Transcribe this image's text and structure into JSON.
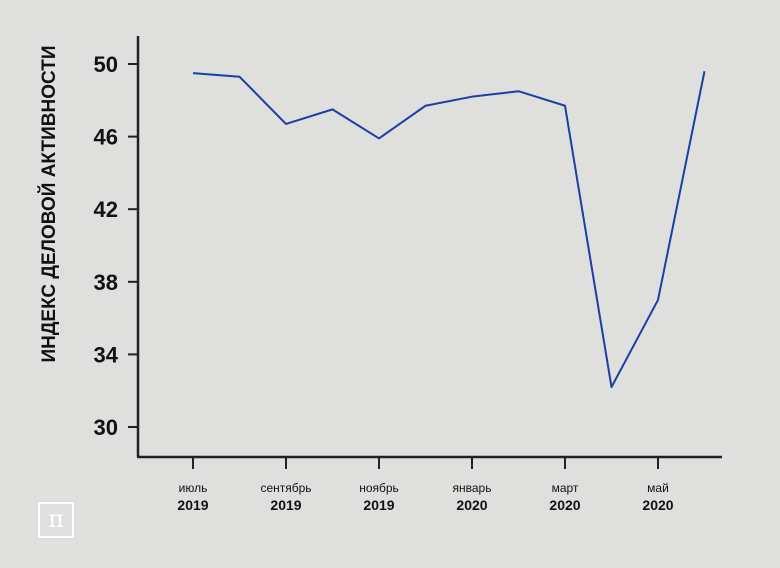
{
  "logo": {
    "symbol": "π",
    "icon": "pi-logo-icon"
  },
  "chart_data": {
    "type": "line",
    "ylabel": "ИНДЕКС ДЕЛОВОЙ АКТИВНОСТИ",
    "xlabel": "",
    "ylim": [
      28.4,
      51.8
    ],
    "yticks": [
      30,
      34,
      38,
      42,
      46,
      50
    ],
    "x_tick_labels": [
      {
        "month": "июль",
        "year": "2019"
      },
      {
        "month": "сентябрь",
        "year": "2019"
      },
      {
        "month": "ноябрь",
        "year": "2019"
      },
      {
        "month": "январь",
        "year": "2020"
      },
      {
        "month": "март",
        "year": "2020"
      },
      {
        "month": "май",
        "year": "2020"
      }
    ],
    "x": [
      "2019-07",
      "2019-08",
      "2019-09",
      "2019-10",
      "2019-11",
      "2019-12",
      "2020-01",
      "2020-02",
      "2020-03",
      "2020-04",
      "2020-05",
      "2020-06"
    ],
    "values": [
      49.5,
      49.3,
      46.7,
      47.5,
      45.9,
      47.7,
      48.2,
      48.5,
      47.7,
      32.2,
      37.0,
      49.6
    ],
    "color": "#1a3fa6",
    "grid": false,
    "legend": "none"
  }
}
